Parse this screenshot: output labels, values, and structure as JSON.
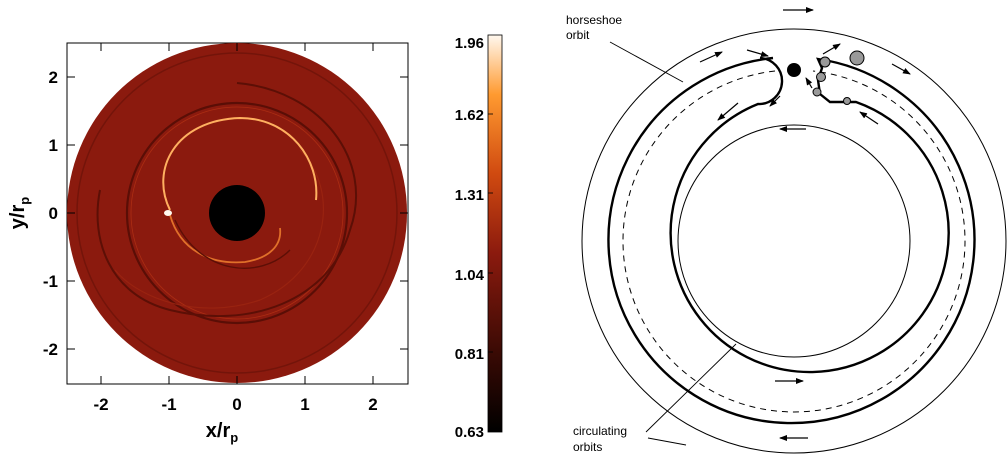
{
  "left_panel": {
    "x_label": "x/r",
    "x_label_sub": "p",
    "y_label": "y/r",
    "y_label_sub": "p",
    "x_ticks": [
      "-2",
      "-1",
      "0",
      "1",
      "2"
    ],
    "y_ticks": [
      "2",
      "1",
      "0",
      "-1",
      "-2"
    ],
    "axis_range": [
      -2.5,
      2.5
    ],
    "disk_color": "#8b1a0e",
    "star_hole_color": "#000000"
  },
  "colorbar": {
    "labels": [
      "1.96",
      "1.62",
      "1.31",
      "1.04",
      "0.81",
      "0.63"
    ],
    "colors": [
      "#000000",
      "#3a0a04",
      "#8b1a0e",
      "#d04a10",
      "#ff9a30",
      "#fff8ef"
    ]
  },
  "right_panel": {
    "label_horseshoe_line1": "horseshoe",
    "label_horseshoe_line2": "orbit",
    "label_circulating_line1": "circulating",
    "label_circulating_line2": "orbits"
  }
}
